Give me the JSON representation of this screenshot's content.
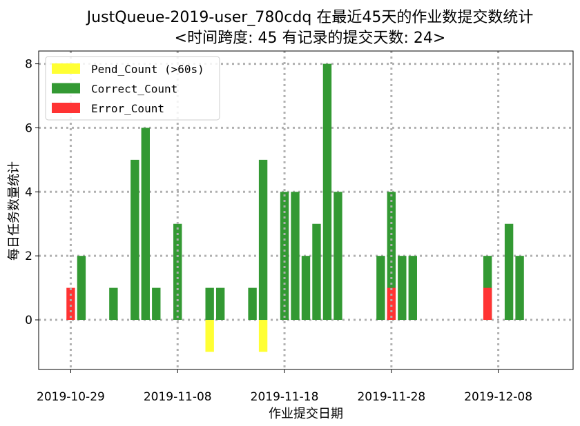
{
  "chart_data": {
    "type": "bar",
    "title_line1": "JustQueue-2019-user_780cdq 在最近45天的作业数提交数统计",
    "title_line2": "<时间跨度: 45  有记录的提交天数: 24>",
    "xlabel": "作业提交日期",
    "ylabel": "每日任务数量统计",
    "x_start": "2019-10-29",
    "x_range": [
      "2019-10-26",
      "2019-12-15"
    ],
    "ylim": [
      -1.55,
      8.4
    ],
    "yticks": [
      0,
      2,
      4,
      6,
      8
    ],
    "xticks": [
      "2019-10-29",
      "2019-11-08",
      "2019-11-18",
      "2019-11-28",
      "2019-12-08"
    ],
    "grid": true,
    "legend_position": "top-left",
    "series": [
      {
        "name": "Pend_Count (>60s)",
        "color": "#ffff33",
        "points": [
          {
            "date": "2019-11-11",
            "value": -1
          },
          {
            "date": "2019-11-16",
            "value": -1
          }
        ]
      },
      {
        "name": "Correct_Count",
        "color": "#339933",
        "points": [
          {
            "date": "2019-10-30",
            "value": 2
          },
          {
            "date": "2019-11-02",
            "value": 1
          },
          {
            "date": "2019-11-04",
            "value": 5
          },
          {
            "date": "2019-11-05",
            "value": 6
          },
          {
            "date": "2019-11-06",
            "value": 1
          },
          {
            "date": "2019-11-08",
            "value": 3
          },
          {
            "date": "2019-11-11",
            "value": 1
          },
          {
            "date": "2019-11-12",
            "value": 1
          },
          {
            "date": "2019-11-15",
            "value": 1
          },
          {
            "date": "2019-11-16",
            "value": 5
          },
          {
            "date": "2019-11-18",
            "value": 4
          },
          {
            "date": "2019-11-19",
            "value": 4
          },
          {
            "date": "2019-11-20",
            "value": 2
          },
          {
            "date": "2019-11-21",
            "value": 3
          },
          {
            "date": "2019-11-22",
            "value": 8
          },
          {
            "date": "2019-11-23",
            "value": 4
          },
          {
            "date": "2019-11-27",
            "value": 2
          },
          {
            "date": "2019-11-28",
            "value": 4
          },
          {
            "date": "2019-11-29",
            "value": 2
          },
          {
            "date": "2019-11-30",
            "value": 2
          },
          {
            "date": "2019-12-07",
            "value": 2
          },
          {
            "date": "2019-12-09",
            "value": 3
          },
          {
            "date": "2019-12-10",
            "value": 2
          }
        ]
      },
      {
        "name": "Error_Count",
        "color": "#ff3333",
        "points": [
          {
            "date": "2019-10-29",
            "value": 1
          },
          {
            "date": "2019-11-28",
            "value": 1
          },
          {
            "date": "2019-12-07",
            "value": 1
          }
        ]
      }
    ]
  }
}
